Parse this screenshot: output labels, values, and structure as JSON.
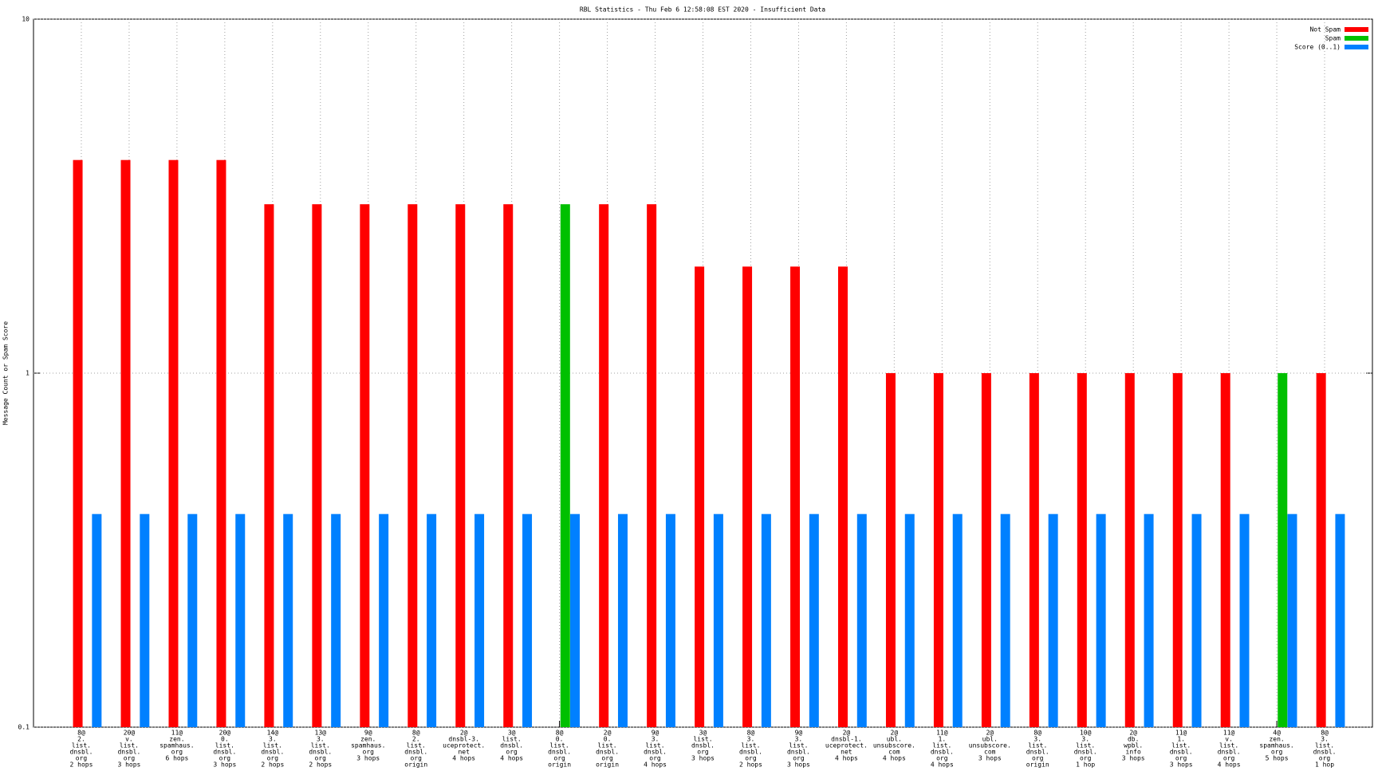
{
  "chart_data": {
    "type": "bar",
    "title": "RBL Statistics - Thu Feb  6 12:58:08 EST 2020 - Insufficient Data",
    "y_label": "Message Count or Spam Score",
    "y_scale": "log",
    "ylim": [
      0.1,
      10
    ],
    "yticks": [
      0.1,
      1,
      10
    ],
    "grid": true,
    "legend": "top-right",
    "categories": [
      [
        "8@",
        "2.",
        "list.",
        "dnsbl.",
        "org",
        "2 hops"
      ],
      [
        "20@",
        "v.",
        "list.",
        "dnsbl.",
        "org",
        "3 hops"
      ],
      [
        "11@",
        "zen.",
        "spamhaus.",
        "org",
        "6 hops"
      ],
      [
        "20@",
        "0.",
        "list.",
        "dnsbl.",
        "org",
        "3 hops"
      ],
      [
        "14@",
        "3.",
        "list.",
        "dnsbl.",
        "org",
        "2 hops"
      ],
      [
        "13@",
        "3.",
        "list.",
        "dnsbl.",
        "org",
        "2 hops"
      ],
      [
        "9@",
        "zen.",
        "spamhaus.",
        "org",
        "3 hops"
      ],
      [
        "8@",
        "2.",
        "list.",
        "dnsbl.",
        "org",
        "origin"
      ],
      [
        "2@",
        "dnsbl-3.",
        "uceprotect.",
        "net",
        "4 hops"
      ],
      [
        "3@",
        "list.",
        "dnsbl.",
        "org",
        "4 hops"
      ],
      [
        "8@",
        "0.",
        "list.",
        "dnsbl.",
        "org",
        "origin"
      ],
      [
        "2@",
        "0.",
        "list.",
        "dnsbl.",
        "org",
        "origin"
      ],
      [
        "9@",
        "3.",
        "list.",
        "dnsbl.",
        "org",
        "4 hops"
      ],
      [
        "3@",
        "list.",
        "dnsbl.",
        "org",
        "3 hops"
      ],
      [
        "8@",
        "3.",
        "list.",
        "dnsbl.",
        "org",
        "2 hops"
      ],
      [
        "9@",
        "3.",
        "list.",
        "dnsbl.",
        "org",
        "3 hops"
      ],
      [
        "2@",
        "dnsbl-1.",
        "uceprotect.",
        "net",
        "4 hops"
      ],
      [
        "2@",
        "ubl.",
        "unsubscore.",
        "com",
        "4 hops"
      ],
      [
        "11@",
        "1.",
        "list.",
        "dnsbl.",
        "org",
        "4 hops"
      ],
      [
        "2@",
        "ubl.",
        "unsubscore.",
        "com",
        "3 hops"
      ],
      [
        "8@",
        "3.",
        "list.",
        "dnsbl.",
        "org",
        "origin"
      ],
      [
        "10@",
        "3.",
        "list.",
        "dnsbl.",
        "org",
        "1 hop"
      ],
      [
        "2@",
        "db.",
        "wpbl.",
        "info",
        "3 hops"
      ],
      [
        "11@",
        "1.",
        "list.",
        "dnsbl.",
        "org",
        "3 hops"
      ],
      [
        "11@",
        "v.",
        "list.",
        "dnsbl.",
        "org",
        "4 hops"
      ],
      [
        "4@",
        "zen.",
        "spamhaus.",
        "org",
        "5 hops"
      ],
      [
        "8@",
        "3.",
        "list.",
        "dnsbl.",
        "org",
        "1 hop"
      ]
    ],
    "series": [
      {
        "name": "Not Spam",
        "color": "#ff0000",
        "values": [
          4,
          4,
          4,
          4,
          3,
          3,
          3,
          3,
          3,
          3,
          null,
          3,
          3,
          2,
          2,
          2,
          2,
          1,
          1,
          1,
          1,
          1,
          1,
          1,
          1,
          null,
          1
        ]
      },
      {
        "name": "Spam",
        "color": "#00c000",
        "values": [
          null,
          null,
          null,
          null,
          null,
          null,
          null,
          null,
          null,
          null,
          3,
          null,
          null,
          null,
          null,
          null,
          null,
          null,
          null,
          null,
          null,
          null,
          null,
          null,
          null,
          1,
          null
        ]
      },
      {
        "name": "Score (0..1)",
        "color": "#0080ff",
        "values": [
          0.4,
          0.4,
          0.4,
          0.4,
          0.4,
          0.4,
          0.4,
          0.4,
          0.4,
          0.4,
          0.4,
          0.4,
          0.4,
          0.4,
          0.4,
          0.4,
          0.4,
          0.4,
          0.4,
          0.4,
          0.4,
          0.4,
          0.4,
          0.4,
          0.4,
          0.4,
          0.4
        ]
      }
    ]
  }
}
